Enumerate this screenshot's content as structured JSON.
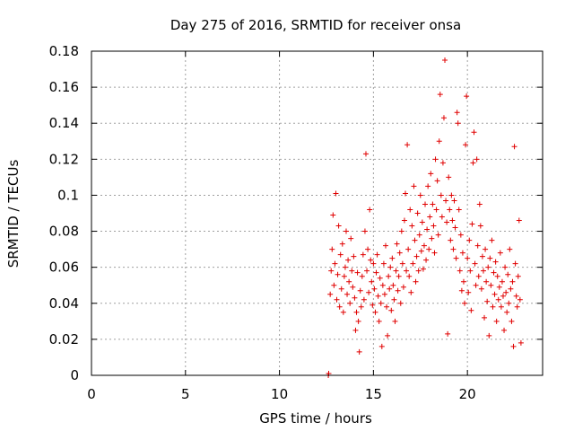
{
  "chart_data": {
    "type": "scatter",
    "title": "Day 275 of 2016, SRMTID for receiver onsa",
    "xlabel": "GPS time / hours",
    "ylabel": "SRMTID / TECUs",
    "xlim": [
      0,
      24
    ],
    "ylim": [
      0,
      0.18
    ],
    "xticks": [
      0,
      5,
      10,
      15,
      20
    ],
    "yticks": [
      0,
      0.02,
      0.04,
      0.06,
      0.08,
      0.1,
      0.12,
      0.14,
      0.16,
      0.18
    ],
    "xtick_labels": [
      "0",
      "5",
      "10",
      "15",
      "20"
    ],
    "ytick_labels": [
      "0",
      "0.02",
      "0.04",
      "0.06",
      "0.08",
      "0.1",
      "0.12",
      "0.14",
      "0.16",
      "0.18"
    ],
    "grid": true,
    "marker_color": "#e00000",
    "series": [
      {
        "marker": "plus",
        "points": [
          [
            12.6,
            0.0
          ],
          [
            12.62,
            0.001
          ],
          [
            12.7,
            0.045
          ],
          [
            12.75,
            0.058
          ],
          [
            12.8,
            0.07
          ],
          [
            12.85,
            0.089
          ],
          [
            12.9,
            0.05
          ],
          [
            12.95,
            0.062
          ],
          [
            13.0,
            0.101
          ],
          [
            13.05,
            0.042
          ],
          [
            13.1,
            0.056
          ],
          [
            13.15,
            0.083
          ],
          [
            13.2,
            0.038
          ],
          [
            13.25,
            0.067
          ],
          [
            13.3,
            0.048
          ],
          [
            13.35,
            0.073
          ],
          [
            13.4,
            0.035
          ],
          [
            13.45,
            0.055
          ],
          [
            13.5,
            0.06
          ],
          [
            13.55,
            0.08
          ],
          [
            13.6,
            0.045
          ],
          [
            13.65,
            0.064
          ],
          [
            13.7,
            0.052
          ],
          [
            13.75,
            0.04
          ],
          [
            13.8,
            0.076
          ],
          [
            13.85,
            0.058
          ],
          [
            13.9,
            0.049
          ],
          [
            13.95,
            0.066
          ],
          [
            14.0,
            0.043
          ],
          [
            14.05,
            0.025
          ],
          [
            14.1,
            0.035
          ],
          [
            14.15,
            0.057
          ],
          [
            14.2,
            0.03
          ],
          [
            14.25,
            0.013
          ],
          [
            14.3,
            0.047
          ],
          [
            14.35,
            0.038
          ],
          [
            14.4,
            0.055
          ],
          [
            14.45,
            0.067
          ],
          [
            14.5,
            0.042
          ],
          [
            14.55,
            0.08
          ],
          [
            14.6,
            0.123
          ],
          [
            14.65,
            0.058
          ],
          [
            14.7,
            0.07
          ],
          [
            14.75,
            0.046
          ],
          [
            14.8,
            0.092
          ],
          [
            14.85,
            0.064
          ],
          [
            14.9,
            0.052
          ],
          [
            14.95,
            0.039
          ],
          [
            15.0,
            0.062
          ],
          [
            15.05,
            0.048
          ],
          [
            15.1,
            0.035
          ],
          [
            15.15,
            0.057
          ],
          [
            15.2,
            0.067
          ],
          [
            15.25,
            0.044
          ],
          [
            15.3,
            0.03
          ],
          [
            15.35,
            0.054
          ],
          [
            15.4,
            0.04
          ],
          [
            15.45,
            0.016
          ],
          [
            15.5,
            0.05
          ],
          [
            15.55,
            0.062
          ],
          [
            15.6,
            0.045
          ],
          [
            15.65,
            0.072
          ],
          [
            15.7,
            0.038
          ],
          [
            15.75,
            0.022
          ],
          [
            15.8,
            0.055
          ],
          [
            15.85,
            0.048
          ],
          [
            15.9,
            0.06
          ],
          [
            15.95,
            0.036
          ],
          [
            16.0,
            0.065
          ],
          [
            16.05,
            0.05
          ],
          [
            16.1,
            0.042
          ],
          [
            16.15,
            0.03
          ],
          [
            16.2,
            0.058
          ],
          [
            16.25,
            0.073
          ],
          [
            16.3,
            0.047
          ],
          [
            16.35,
            0.055
          ],
          [
            16.4,
            0.068
          ],
          [
            16.45,
            0.04
          ],
          [
            16.5,
            0.08
          ],
          [
            16.55,
            0.062
          ],
          [
            16.6,
            0.049
          ],
          [
            16.65,
            0.086
          ],
          [
            16.7,
            0.101
          ],
          [
            16.75,
            0.058
          ],
          [
            16.8,
            0.128
          ],
          [
            16.85,
            0.07
          ],
          [
            16.9,
            0.055
          ],
          [
            16.95,
            0.092
          ],
          [
            17.0,
            0.046
          ],
          [
            17.05,
            0.083
          ],
          [
            17.1,
            0.062
          ],
          [
            17.15,
            0.105
          ],
          [
            17.2,
            0.075
          ],
          [
            17.25,
            0.052
          ],
          [
            17.3,
            0.066
          ],
          [
            17.35,
            0.09
          ],
          [
            17.4,
            0.058
          ],
          [
            17.45,
            0.078
          ],
          [
            17.5,
            0.1
          ],
          [
            17.55,
            0.069
          ],
          [
            17.6,
            0.085
          ],
          [
            17.65,
            0.059
          ],
          [
            17.7,
            0.072
          ],
          [
            17.75,
            0.095
          ],
          [
            17.8,
            0.064
          ],
          [
            17.85,
            0.081
          ],
          [
            17.9,
            0.105
          ],
          [
            17.95,
            0.07
          ],
          [
            18.0,
            0.088
          ],
          [
            18.05,
            0.112
          ],
          [
            18.1,
            0.076
          ],
          [
            18.15,
            0.095
          ],
          [
            18.2,
            0.083
          ],
          [
            18.25,
            0.068
          ],
          [
            18.3,
            0.12
          ],
          [
            18.35,
            0.092
          ],
          [
            18.4,
            0.108
          ],
          [
            18.45,
            0.078
          ],
          [
            18.5,
            0.13
          ],
          [
            18.55,
            0.156
          ],
          [
            18.6,
            0.1
          ],
          [
            18.65,
            0.088
          ],
          [
            18.7,
            0.118
          ],
          [
            18.75,
            0.143
          ],
          [
            18.8,
            0.175
          ],
          [
            18.85,
            0.097
          ],
          [
            18.9,
            0.085
          ],
          [
            18.95,
            0.023
          ],
          [
            19.0,
            0.11
          ],
          [
            19.05,
            0.092
          ],
          [
            19.1,
            0.075
          ],
          [
            19.15,
            0.1
          ],
          [
            19.2,
            0.086
          ],
          [
            19.25,
            0.07
          ],
          [
            19.3,
            0.097
          ],
          [
            19.35,
            0.082
          ],
          [
            19.4,
            0.065
          ],
          [
            19.45,
            0.146
          ],
          [
            19.5,
            0.14
          ],
          [
            19.55,
            0.092
          ],
          [
            19.6,
            0.058
          ],
          [
            19.65,
            0.078
          ],
          [
            19.7,
            0.047
          ],
          [
            19.75,
            0.068
          ],
          [
            19.8,
            0.052
          ],
          [
            19.85,
            0.04
          ],
          [
            19.9,
            0.128
          ],
          [
            19.95,
            0.155
          ],
          [
            20.0,
            0.065
          ],
          [
            20.05,
            0.046
          ],
          [
            20.1,
            0.075
          ],
          [
            20.15,
            0.058
          ],
          [
            20.2,
            0.036
          ],
          [
            20.25,
            0.084
          ],
          [
            20.3,
            0.118
          ],
          [
            20.35,
            0.135
          ],
          [
            20.4,
            0.062
          ],
          [
            20.45,
            0.05
          ],
          [
            20.5,
            0.12
          ],
          [
            20.55,
            0.072
          ],
          [
            20.6,
            0.055
          ],
          [
            20.65,
            0.095
          ],
          [
            20.7,
            0.083
          ],
          [
            20.75,
            0.048
          ],
          [
            20.8,
            0.066
          ],
          [
            20.85,
            0.058
          ],
          [
            20.9,
            0.032
          ],
          [
            20.95,
            0.07
          ],
          [
            21.0,
            0.052
          ],
          [
            21.05,
            0.041
          ],
          [
            21.1,
            0.06
          ],
          [
            21.15,
            0.022
          ],
          [
            21.2,
            0.065
          ],
          [
            21.25,
            0.05
          ],
          [
            21.3,
            0.075
          ],
          [
            21.35,
            0.038
          ],
          [
            21.4,
            0.057
          ],
          [
            21.45,
            0.045
          ],
          [
            21.5,
            0.063
          ],
          [
            21.55,
            0.03
          ],
          [
            21.6,
            0.055
          ],
          [
            21.65,
            0.042
          ],
          [
            21.7,
            0.049
          ],
          [
            21.75,
            0.068
          ],
          [
            21.8,
            0.038
          ],
          [
            21.85,
            0.052
          ],
          [
            21.9,
            0.044
          ],
          [
            21.95,
            0.025
          ],
          [
            22.0,
            0.06
          ],
          [
            22.05,
            0.046
          ],
          [
            22.1,
            0.035
          ],
          [
            22.15,
            0.056
          ],
          [
            22.2,
            0.04
          ],
          [
            22.25,
            0.07
          ],
          [
            22.3,
            0.048
          ],
          [
            22.35,
            0.03
          ],
          [
            22.4,
            0.052
          ],
          [
            22.45,
            0.016
          ],
          [
            22.5,
            0.127
          ],
          [
            22.55,
            0.062
          ],
          [
            22.6,
            0.044
          ],
          [
            22.65,
            0.038
          ],
          [
            22.7,
            0.055
          ],
          [
            22.75,
            0.086
          ],
          [
            22.8,
            0.042
          ],
          [
            22.85,
            0.018
          ]
        ]
      }
    ]
  }
}
